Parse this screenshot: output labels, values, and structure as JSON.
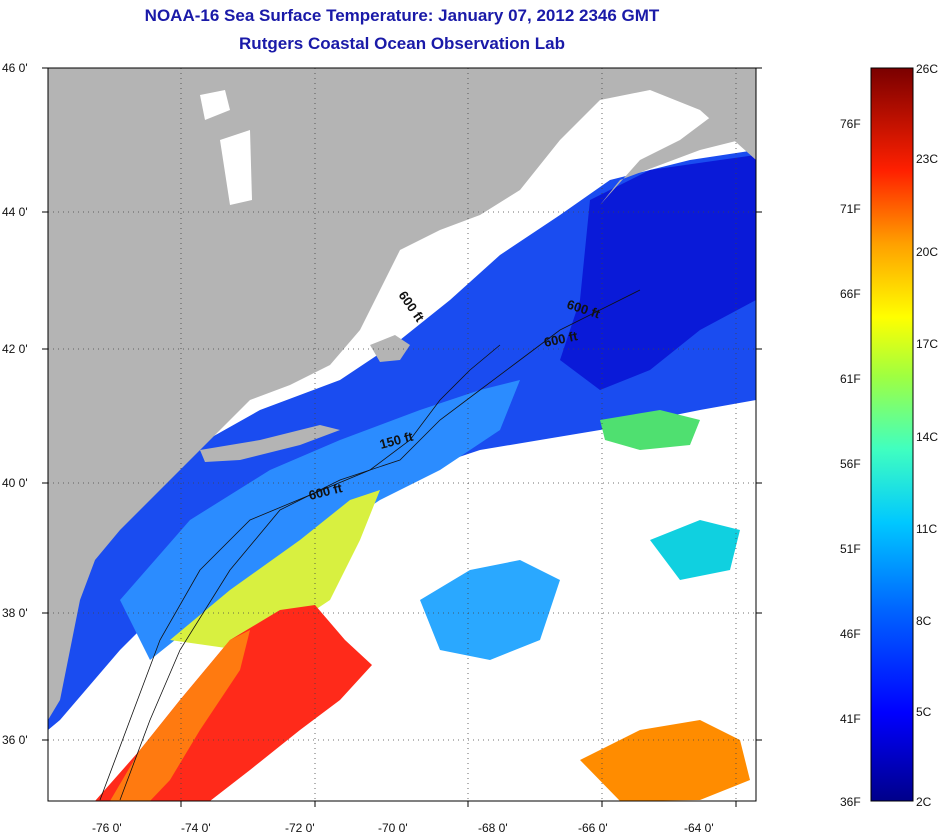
{
  "title": "NOAA-16 Sea Surface Temperature:  January 07, 2012 2346 GMT",
  "subtitle": "Rutgers Coastal Ocean Observation Lab",
  "lat_ticks": [
    "46 0'",
    "44 0'",
    "42 0'",
    "40 0'",
    "38 0'",
    "36 0'"
  ],
  "lon_ticks": [
    "-76 0'",
    "-74 0'",
    "-72 0'",
    "-70 0'",
    "-68 0'",
    "-66 0'",
    "-64 0'"
  ],
  "contour_labels": [
    "600 ft",
    "600 ft",
    "600 ft",
    "150 ft",
    "600 ft"
  ],
  "colorbar": {
    "fahrenheit": [
      "76F",
      "71F",
      "66F",
      "61F",
      "56F",
      "51F",
      "46F",
      "41F",
      "36F"
    ],
    "celsius": [
      "26C",
      "23C",
      "20C",
      "17C",
      "14C",
      "11C",
      "8C",
      "5C",
      "2C"
    ]
  },
  "colors": {
    "land": "#b4b4b4",
    "cloud": "#ffffff",
    "title": "#1a1aa8"
  }
}
